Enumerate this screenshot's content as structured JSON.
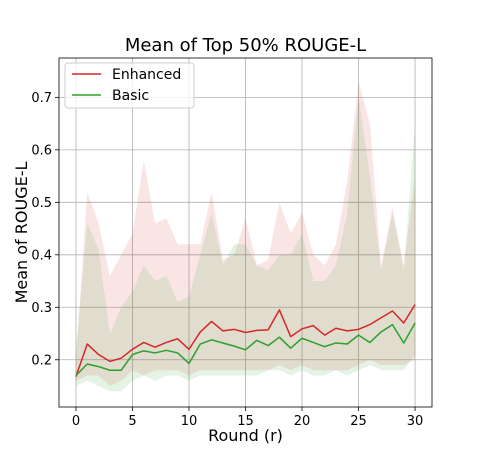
{
  "chart_data": {
    "type": "line",
    "title": "Mean of Top 50% ROUGE-L",
    "xlabel": "Round (r)",
    "ylabel": "Mean of ROUGE-L",
    "xlim": [
      -1.5,
      31.5
    ],
    "ylim": [
      0.11,
      0.775
    ],
    "xticks": [
      0,
      5,
      10,
      15,
      20,
      25,
      30
    ],
    "yticks": [
      0.2,
      0.3,
      0.4,
      0.5,
      0.6,
      0.7
    ],
    "ytick_labels": [
      "0.2",
      "0.3",
      "0.4",
      "0.5",
      "0.6",
      "0.7"
    ],
    "grid": true,
    "legend_position": "upper-left",
    "x": [
      0,
      1,
      2,
      3,
      4,
      5,
      6,
      7,
      8,
      9,
      10,
      11,
      12,
      13,
      14,
      15,
      16,
      17,
      18,
      19,
      20,
      21,
      22,
      23,
      24,
      25,
      26,
      27,
      28,
      29,
      30
    ],
    "series": [
      {
        "name": "Enhanced",
        "color": "#d62728",
        "values": [
          0.168,
          0.23,
          0.21,
          0.197,
          0.203,
          0.22,
          0.233,
          0.224,
          0.233,
          0.24,
          0.22,
          0.253,
          0.273,
          0.255,
          0.258,
          0.252,
          0.256,
          0.257,
          0.295,
          0.244,
          0.259,
          0.265,
          0.247,
          0.26,
          0.255,
          0.258,
          0.267,
          0.28,
          0.293,
          0.27,
          0.305
        ],
        "upper": [
          0.2,
          0.52,
          0.46,
          0.36,
          0.4,
          0.44,
          0.58,
          0.46,
          0.47,
          0.42,
          0.42,
          0.42,
          0.52,
          0.39,
          0.4,
          0.47,
          0.38,
          0.39,
          0.5,
          0.44,
          0.48,
          0.4,
          0.38,
          0.42,
          0.54,
          0.73,
          0.65,
          0.38,
          0.49,
          0.38,
          0.55
        ],
        "lower": [
          0.16,
          0.17,
          0.17,
          0.15,
          0.16,
          0.18,
          0.17,
          0.18,
          0.18,
          0.18,
          0.17,
          0.18,
          0.18,
          0.18,
          0.18,
          0.18,
          0.18,
          0.18,
          0.19,
          0.18,
          0.19,
          0.18,
          0.18,
          0.18,
          0.18,
          0.19,
          0.2,
          0.19,
          0.19,
          0.19,
          0.2
        ]
      },
      {
        "name": "Basic",
        "color": "#2ca02c",
        "values": [
          0.17,
          0.192,
          0.187,
          0.18,
          0.18,
          0.21,
          0.217,
          0.213,
          0.218,
          0.213,
          0.193,
          0.23,
          0.238,
          0.232,
          0.226,
          0.219,
          0.237,
          0.227,
          0.243,
          0.222,
          0.241,
          0.233,
          0.225,
          0.232,
          0.23,
          0.247,
          0.233,
          0.253,
          0.267,
          0.232,
          0.27
        ],
        "upper": [
          0.22,
          0.46,
          0.41,
          0.25,
          0.3,
          0.33,
          0.38,
          0.35,
          0.36,
          0.31,
          0.32,
          0.4,
          0.48,
          0.38,
          0.42,
          0.42,
          0.38,
          0.37,
          0.4,
          0.4,
          0.44,
          0.35,
          0.35,
          0.38,
          0.48,
          0.7,
          0.55,
          0.37,
          0.48,
          0.37,
          0.65
        ],
        "lower": [
          0.15,
          0.16,
          0.15,
          0.14,
          0.14,
          0.16,
          0.17,
          0.16,
          0.17,
          0.17,
          0.16,
          0.17,
          0.17,
          0.17,
          0.17,
          0.17,
          0.17,
          0.18,
          0.18,
          0.17,
          0.18,
          0.17,
          0.17,
          0.18,
          0.17,
          0.18,
          0.19,
          0.18,
          0.18,
          0.18,
          0.21
        ]
      }
    ]
  }
}
